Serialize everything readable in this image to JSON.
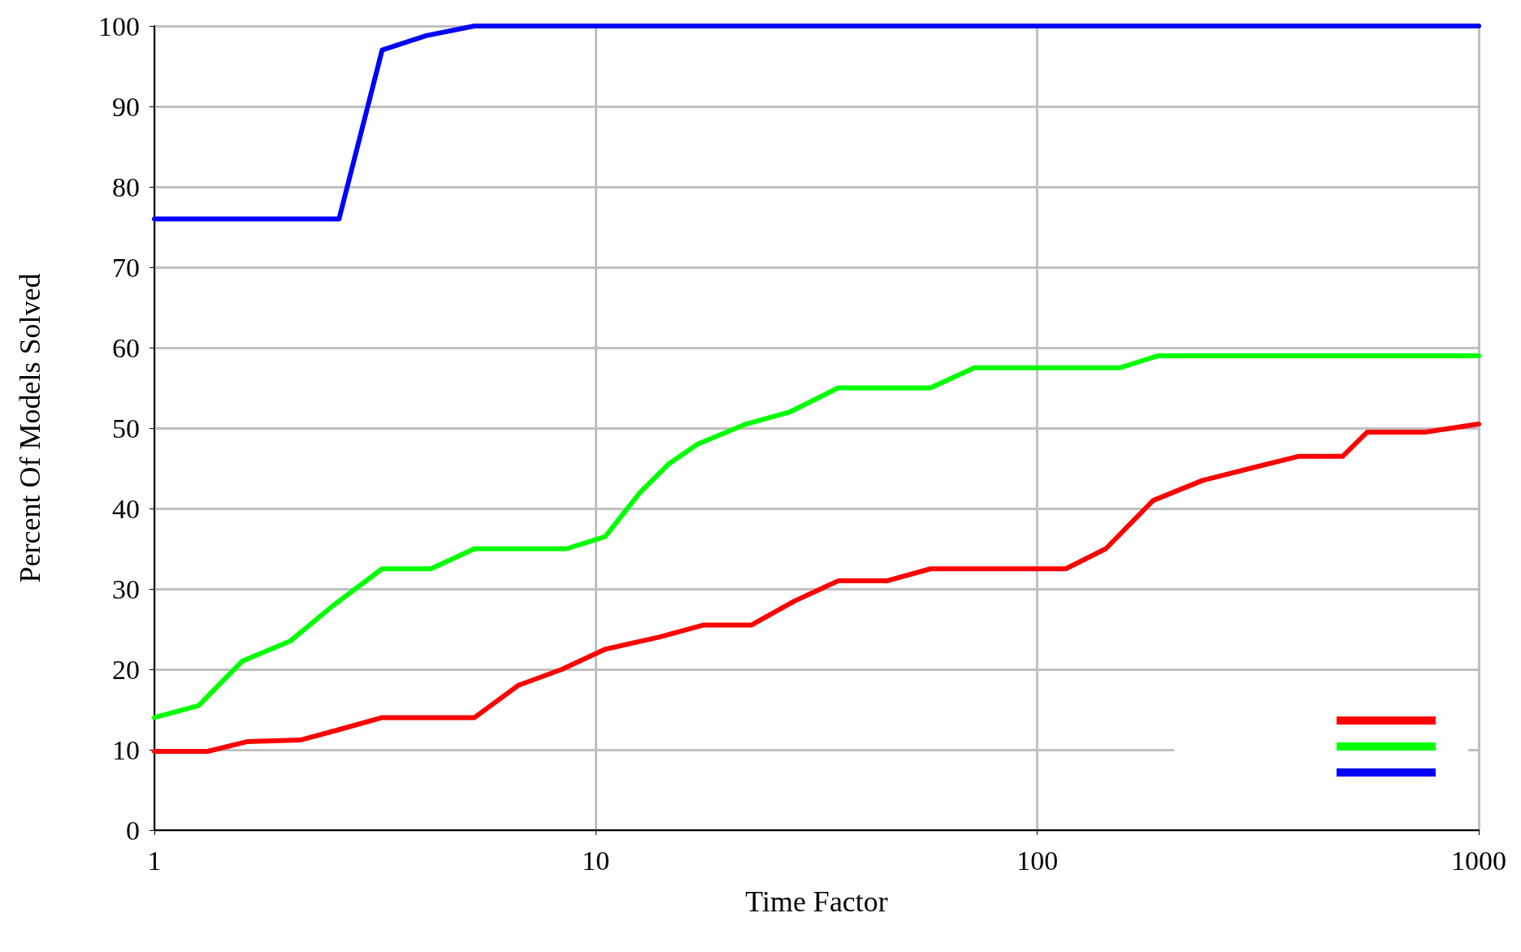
{
  "chart_data": {
    "type": "line",
    "xlabel": "Time Factor",
    "ylabel": "Percent Of Models Solved",
    "log": "x",
    "xlim": [
      1,
      1000
    ],
    "xticks": [
      1,
      10,
      100,
      1000
    ],
    "ylim": [
      0,
      100
    ],
    "yticks": [
      0,
      10,
      20,
      30,
      40,
      50,
      60,
      70,
      80,
      90,
      100
    ],
    "grid": true,
    "marker": "none",
    "line_style": "solid",
    "series": [
      {
        "color": "#ff0000",
        "x": [
          1,
          1.32,
          1.62,
          2.14,
          2.62,
          3.28,
          5.31,
          6.67,
          8.38,
          10.5,
          13.9,
          17.5,
          22.5,
          28.2,
          35.4,
          45.6,
          57.3,
          116,
          143,
          183,
          237,
          304,
          392,
          492,
          559,
          757,
          1000
        ],
        "values": [
          9.8,
          9.8,
          11,
          11.2,
          12.5,
          14,
          14,
          18,
          20,
          22.5,
          24,
          25.5,
          25.5,
          28.5,
          31,
          31,
          32.5,
          32.5,
          35,
          41,
          43.5,
          45,
          46.5,
          46.5,
          49.5,
          49.5,
          50.5
        ]
      },
      {
        "color": "#00ff00",
        "x": [
          1,
          1.26,
          1.58,
          2.03,
          2.55,
          3.28,
          4.23,
          5.31,
          8.59,
          10.5,
          12.6,
          14.6,
          17,
          21.9,
          27.5,
          35.4,
          57.3,
          72,
          154,
          188,
          1000
        ],
        "values": [
          14,
          15.5,
          21,
          23.5,
          28,
          32.5,
          32.5,
          35,
          35,
          36.5,
          42,
          45.5,
          48,
          50.5,
          52,
          55,
          55,
          57.5,
          57.5,
          59,
          59
        ]
      },
      {
        "color": "#0000ff",
        "x": [
          1,
          2.62,
          3.28,
          4.13,
          5.31,
          1000
        ],
        "values": [
          76,
          76,
          97,
          98.8,
          100,
          100
        ]
      }
    ]
  }
}
